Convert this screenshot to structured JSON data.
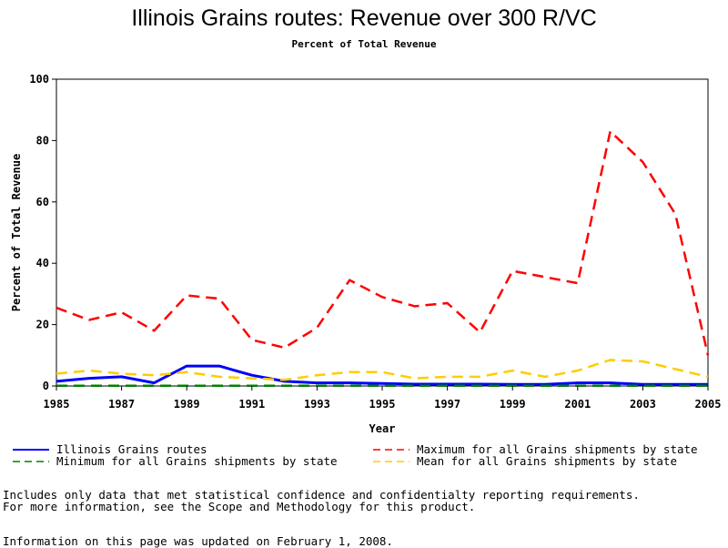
{
  "chart_data": {
    "type": "line",
    "title": "Illinois Grains routes: Revenue over 300 R/VC",
    "subtitle": "Percent of Total Revenue",
    "xlabel": "Year",
    "ylabel": "Percent of Total Revenue",
    "xlim": [
      1985,
      2005
    ],
    "ylim": [
      0,
      100
    ],
    "x_ticks": [
      1985,
      1987,
      1989,
      1991,
      1993,
      1995,
      1997,
      1999,
      2001,
      2003,
      2005
    ],
    "y_ticks": [
      0,
      20,
      40,
      60,
      80,
      100
    ],
    "x": [
      1985,
      1986,
      1987,
      1988,
      1989,
      1990,
      1991,
      1992,
      1993,
      1994,
      1995,
      1996,
      1997,
      1998,
      1999,
      2000,
      2001,
      2002,
      2003,
      2004,
      2005
    ],
    "legend_position": "bottom",
    "series": [
      {
        "name": "Illinois Grains routes",
        "color": "#0000ff",
        "style": "solid",
        "values": [
          1.5,
          2.5,
          3,
          1,
          6.5,
          6.5,
          3.5,
          1.5,
          1,
          1,
          0.8,
          0.6,
          0.6,
          0.6,
          0.5,
          0.5,
          1,
          1,
          0.5,
          0.5,
          0.5
        ]
      },
      {
        "name": "Maximum for all Grains shipments by state",
        "color": "#ff0000",
        "style": "dashed",
        "values": [
          25.5,
          21.5,
          24,
          18,
          29.5,
          28.5,
          15,
          12.5,
          19,
          34.5,
          29,
          26,
          27,
          17.5,
          37.5,
          35.5,
          33.5,
          83,
          73,
          56,
          10
        ]
      },
      {
        "name": "Minimum for all Grains shipments by state",
        "color": "#008000",
        "style": "dashed",
        "values": [
          0.1,
          0.1,
          0.1,
          0.1,
          0.1,
          0.1,
          0.1,
          0.1,
          0.1,
          0.1,
          0.1,
          0.1,
          0.1,
          0.1,
          0.1,
          0.1,
          0.1,
          0.1,
          0.1,
          0.1,
          0.1
        ]
      },
      {
        "name": "Mean for all Grains shipments by state",
        "color": "#ffcc00",
        "style": "dashed",
        "values": [
          4,
          5,
          4,
          3.5,
          4.5,
          3,
          2.5,
          2,
          3.5,
          4.5,
          4.5,
          2.5,
          3,
          3,
          5,
          3,
          5,
          8.5,
          8,
          5.5,
          3
        ]
      }
    ]
  },
  "notes": {
    "line1": "Includes only data that met statistical confidence and confidentialty reporting requirements.",
    "line2": "For more information, see the Scope and Methodology for this product.",
    "updated": "Information on this page was updated on February 1, 2008."
  }
}
